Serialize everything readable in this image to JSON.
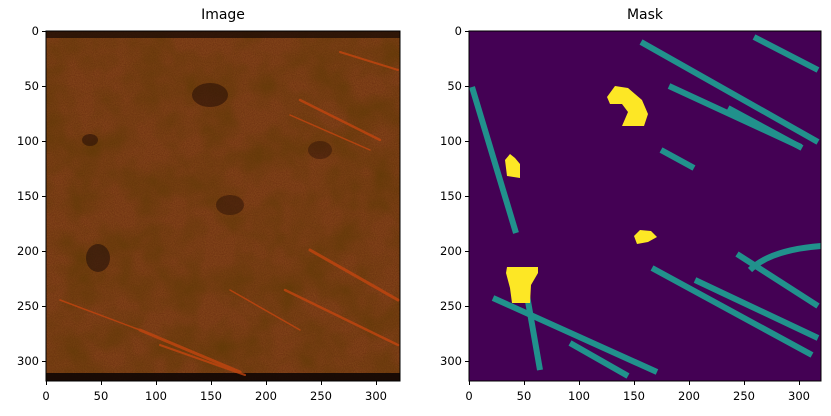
{
  "panels": [
    {
      "title": "Image",
      "x_ticks": [
        "0",
        "50",
        "100",
        "150",
        "200",
        "250",
        "300"
      ],
      "y_ticks": [
        "0",
        "50",
        "100",
        "150",
        "200",
        "250",
        "300"
      ]
    },
    {
      "title": "Mask",
      "x_ticks": [
        "0",
        "50",
        "100",
        "150",
        "200",
        "250",
        "300"
      ],
      "y_ticks": [
        "0",
        "50",
        "100",
        "150",
        "200",
        "250",
        "300"
      ]
    }
  ],
  "colors": {
    "image_base": "#4a2210",
    "image_streak": "#c8460f",
    "mask_background": "#440154",
    "mask_crack": "#21918c",
    "mask_blob": "#fde725"
  }
}
